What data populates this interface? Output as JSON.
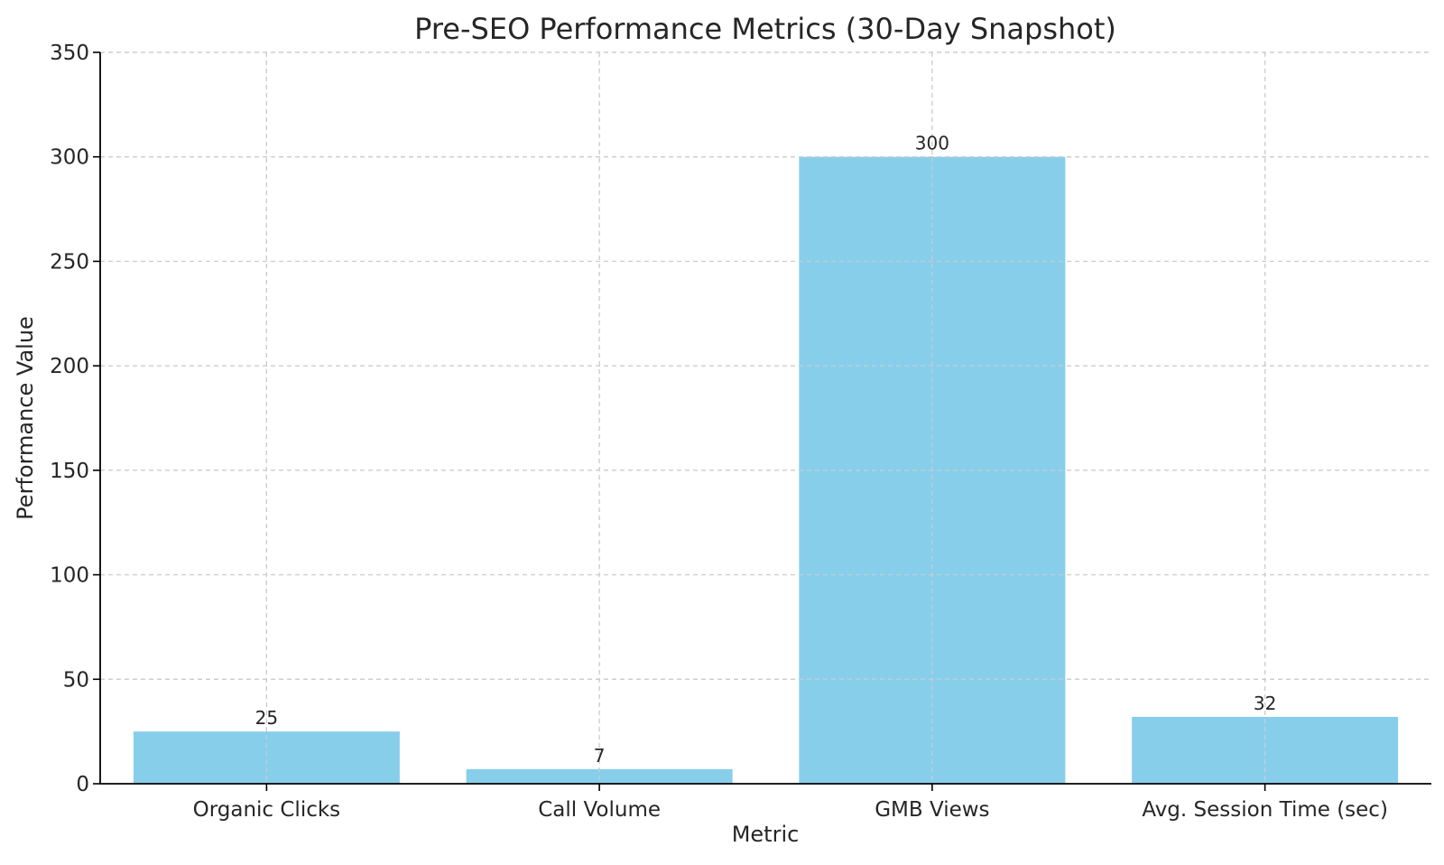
{
  "chart_data": {
    "type": "bar",
    "title": "Pre-SEO Performance Metrics (30-Day Snapshot)",
    "xlabel": "Metric",
    "ylabel": "Performance Value",
    "categories": [
      "Organic Clicks",
      "Call Volume",
      "GMB Views",
      "Avg. Session Time (sec)"
    ],
    "values": [
      25,
      7,
      300,
      32
    ],
    "value_labels": [
      "25",
      "7",
      "300",
      "32"
    ],
    "ylim": [
      0,
      350
    ],
    "yticks": [
      0,
      50,
      100,
      150,
      200,
      250,
      300,
      350
    ],
    "ytick_labels": [
      "0",
      "50",
      "100",
      "150",
      "200",
      "250",
      "300",
      "350"
    ],
    "grid": true,
    "bar_color": "#87ceeb"
  }
}
